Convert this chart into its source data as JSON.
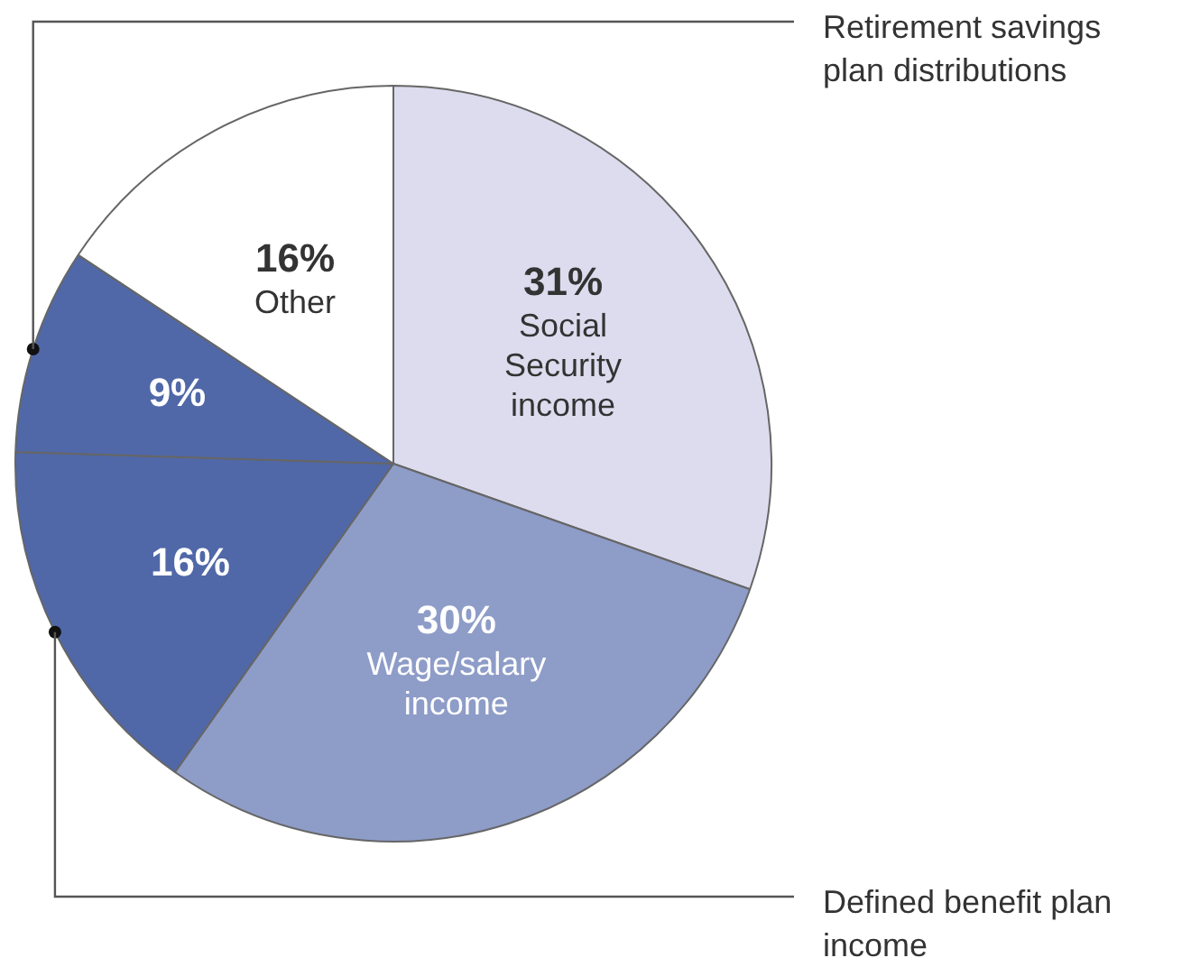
{
  "chart_data": {
    "type": "pie",
    "categories": [
      "Social Security income",
      "Wage/salary income",
      "Defined benefit plan income",
      "Retirement savings plan distributions",
      "Other"
    ],
    "values": [
      31,
      30,
      16,
      9,
      16
    ],
    "colors": [
      "#dcdcee",
      "#8e9cc8",
      "#5068a8",
      "#5068a8",
      "#ffffff"
    ],
    "value_labels": [
      "31%",
      "30%",
      "16%",
      "9%",
      "16%"
    ],
    "legend": false
  }
}
